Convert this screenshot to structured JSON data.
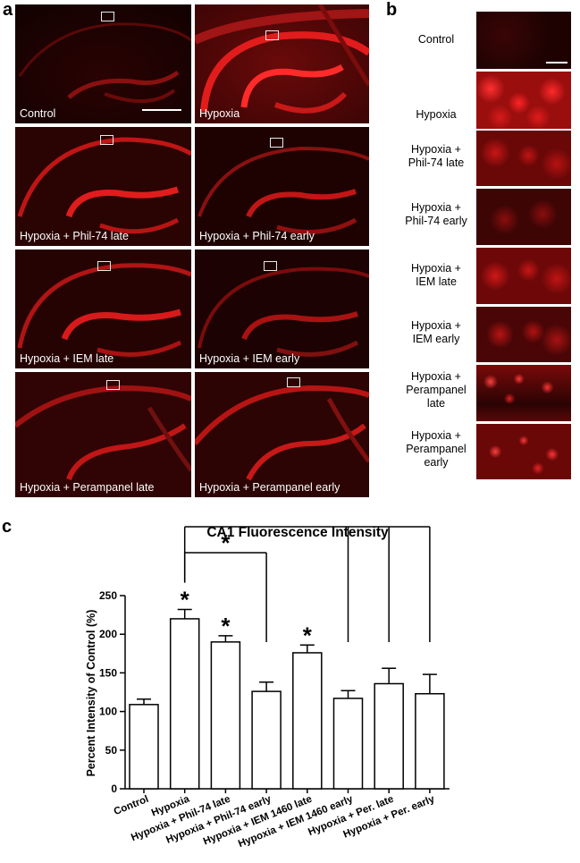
{
  "panel_labels": {
    "a": "a",
    "b": "b",
    "c": "c"
  },
  "panel_a": {
    "tiles": [
      {
        "label": "Control"
      },
      {
        "label": "Hypoxia"
      },
      {
        "label": "Hypoxia + Phil-74 late"
      },
      {
        "label": "Hypoxia + Phil-74 early"
      },
      {
        "label": "Hypoxia + IEM late"
      },
      {
        "label": "Hypoxia + IEM early"
      },
      {
        "label": "Hypoxia + Perampanel late"
      },
      {
        "label": "Hypoxia + Perampanel early"
      }
    ]
  },
  "panel_b": {
    "rows": [
      {
        "line1": "Control",
        "line2": "",
        "line3": ""
      },
      {
        "line1": "Hypoxia",
        "line2": "",
        "line3": ""
      },
      {
        "line1": "Hypoxia +",
        "line2": "Phil-74 late",
        "line3": ""
      },
      {
        "line1": "Hypoxia +",
        "line2": "Phil-74 early",
        "line3": ""
      },
      {
        "line1": "Hypoxia +",
        "line2": "IEM late",
        "line3": ""
      },
      {
        "line1": "Hypoxia +",
        "line2": "IEM early",
        "line3": ""
      },
      {
        "line1": "Hypoxia +",
        "line2": "Perampanel",
        "line3": "late"
      },
      {
        "line1": "Hypoxia +",
        "line2": "Perampanel",
        "line3": "early"
      }
    ]
  },
  "chart_data": {
    "type": "bar",
    "title": "CA1 Fluorescence Intensity",
    "ylabel": "Percent Intensity of Control (%)",
    "xlabel": "",
    "ylim": [
      0,
      250
    ],
    "yticks": [
      "0",
      "50",
      "100",
      "150",
      "200",
      "250"
    ],
    "categories": [
      "Control",
      "Hypoxia",
      "Hypoxia + Phil-74 late",
      "Hypoxia + Phil-74 early",
      "Hypoxia + IEM 1460 late",
      "Hypoxia + IEM 1460 early",
      "Hypoxia + Per. late",
      "Hypoxia + Per. early"
    ],
    "values": [
      109,
      220,
      190,
      126,
      176,
      117,
      136,
      123
    ],
    "errors": [
      7,
      12,
      8,
      12,
      10,
      10,
      20,
      25
    ],
    "bar_marks": [
      "",
      "*",
      "*",
      "",
      "*",
      "",
      "",
      ""
    ],
    "brackets": [
      {
        "mark": "*",
        "from": 1,
        "to": [
          3
        ]
      },
      {
        "mark": "*",
        "from": 1,
        "to": [
          5,
          6,
          7
        ]
      }
    ],
    "grid": false,
    "legend": "none"
  }
}
